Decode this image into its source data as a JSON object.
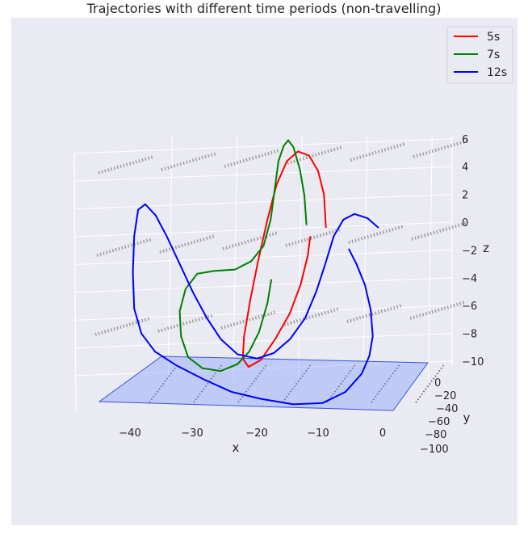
{
  "chart_data": {
    "type": "line",
    "title": "Trajectories with different time periods (non-travelling)",
    "projection": "3d",
    "xlabel": "x",
    "ylabel": "y",
    "zlabel": "z",
    "x_ticks": [
      "−40",
      "−30",
      "−20",
      "−10",
      "0"
    ],
    "y_ticks": [
      "0",
      "−20",
      "−40",
      "−60",
      "−80",
      "−100"
    ],
    "z_ticks": [
      "6",
      "4",
      "2",
      "0",
      "−2",
      "−4",
      "−6",
      "−8",
      "−10"
    ],
    "xlim": [
      -46,
      3
    ],
    "ylim": [
      -100,
      0
    ],
    "zlim": [
      -10,
      6
    ],
    "grid": true,
    "legend_position": "top-right",
    "series": [
      {
        "name": "5s",
        "color": "#ff0000",
        "points": [
          [
            -12.0,
            -50,
            0.0
          ],
          [
            -12.3,
            -50,
            2.4
          ],
          [
            -13.2,
            -50,
            4.1
          ],
          [
            -14.6,
            -50,
            5.2
          ],
          [
            -16.3,
            -50,
            5.5
          ],
          [
            -18.0,
            -50,
            4.8
          ],
          [
            -19.6,
            -50,
            3.1
          ],
          [
            -21.0,
            -50,
            0.6
          ],
          [
            -22.4,
            -50,
            -2.3
          ],
          [
            -23.6,
            -50,
            -5.1
          ],
          [
            -24.6,
            -50,
            -7.8
          ],
          [
            -24.8,
            -50,
            -9.4
          ],
          [
            -23.9,
            -50,
            -10.0
          ],
          [
            -22.0,
            -50,
            -9.5
          ],
          [
            -19.8,
            -50,
            -8.0
          ],
          [
            -17.6,
            -50,
            -6.2
          ],
          [
            -15.9,
            -50,
            -4.1
          ],
          [
            -14.8,
            -50,
            -2.0
          ],
          [
            -14.4,
            -50,
            -0.6
          ]
        ]
      },
      {
        "name": "7s",
        "color": "#008000",
        "points": [
          [
            -15.0,
            -50,
            0.2
          ],
          [
            -15.3,
            -50,
            2.3
          ],
          [
            -16.0,
            -50,
            4.2
          ],
          [
            -17.0,
            -50,
            5.8
          ],
          [
            -17.8,
            -50,
            6.3
          ],
          [
            -18.5,
            -50,
            5.9
          ],
          [
            -19.3,
            -50,
            4.8
          ],
          [
            -19.9,
            -50,
            2.7
          ],
          [
            -20.5,
            -50,
            0.6
          ],
          [
            -21.6,
            -50,
            -1.3
          ],
          [
            -23.5,
            -50,
            -2.4
          ],
          [
            -26.0,
            -50,
            -3.0
          ],
          [
            -29.2,
            -50,
            -3.1
          ],
          [
            -31.8,
            -50,
            -3.3
          ],
          [
            -33.6,
            -50,
            -4.4
          ],
          [
            -34.5,
            -50,
            -6.0
          ],
          [
            -34.3,
            -50,
            -7.8
          ],
          [
            -33.2,
            -50,
            -9.3
          ],
          [
            -31.0,
            -50,
            -10.1
          ],
          [
            -28.2,
            -50,
            -10.3
          ],
          [
            -25.6,
            -50,
            -9.8
          ],
          [
            -23.8,
            -50,
            -8.9
          ],
          [
            -22.3,
            -50,
            -7.5
          ],
          [
            -21.0,
            -50,
            -5.4
          ],
          [
            -20.4,
            -50,
            -3.7
          ]
        ]
      },
      {
        "name": "12s",
        "color": "#0000ff",
        "points": [
          [
            -8.5,
            -50,
            -1.5
          ],
          [
            -7.3,
            -50,
            -2.6
          ],
          [
            -6.0,
            -50,
            -4.1
          ],
          [
            -5.1,
            -50,
            -5.9
          ],
          [
            -4.8,
            -50,
            -7.8
          ],
          [
            -5.3,
            -50,
            -9.2
          ],
          [
            -6.5,
            -50,
            -10.5
          ],
          [
            -9.0,
            -50,
            -11.8
          ],
          [
            -12.5,
            -50,
            -12.6
          ],
          [
            -17.0,
            -50,
            -12.7
          ],
          [
            -22.0,
            -50,
            -12.3
          ],
          [
            -26.5,
            -50,
            -11.8
          ],
          [
            -30.8,
            -50,
            -10.9
          ],
          [
            -35.0,
            -50,
            -9.9
          ],
          [
            -38.3,
            -50,
            -8.9
          ],
          [
            -40.4,
            -50,
            -7.6
          ],
          [
            -41.5,
            -50,
            -5.8
          ],
          [
            -41.7,
            -50,
            -3.2
          ],
          [
            -41.5,
            -50,
            -0.6
          ],
          [
            -40.9,
            -50,
            1.3
          ],
          [
            -39.8,
            -50,
            1.7
          ],
          [
            -38.2,
            -50,
            0.9
          ],
          [
            -36.5,
            -50,
            -0.6
          ],
          [
            -34.5,
            -50,
            -2.6
          ],
          [
            -32.4,
            -50,
            -4.7
          ],
          [
            -30.3,
            -50,
            -6.5
          ],
          [
            -28.2,
            -50,
            -8.0
          ],
          [
            -25.6,
            -50,
            -9.1
          ],
          [
            -22.6,
            -50,
            -9.4
          ],
          [
            -20.0,
            -50,
            -9.0
          ],
          [
            -17.5,
            -50,
            -8.0
          ],
          [
            -15.2,
            -50,
            -6.5
          ],
          [
            -13.5,
            -50,
            -4.6
          ],
          [
            -12.1,
            -50,
            -2.6
          ],
          [
            -10.8,
            -50,
            -0.6
          ],
          [
            -9.3,
            -50,
            0.6
          ],
          [
            -7.6,
            -50,
            1.0
          ],
          [
            -5.6,
            -50,
            0.7
          ],
          [
            -3.9,
            -50,
            0.0
          ]
        ]
      }
    ]
  }
}
